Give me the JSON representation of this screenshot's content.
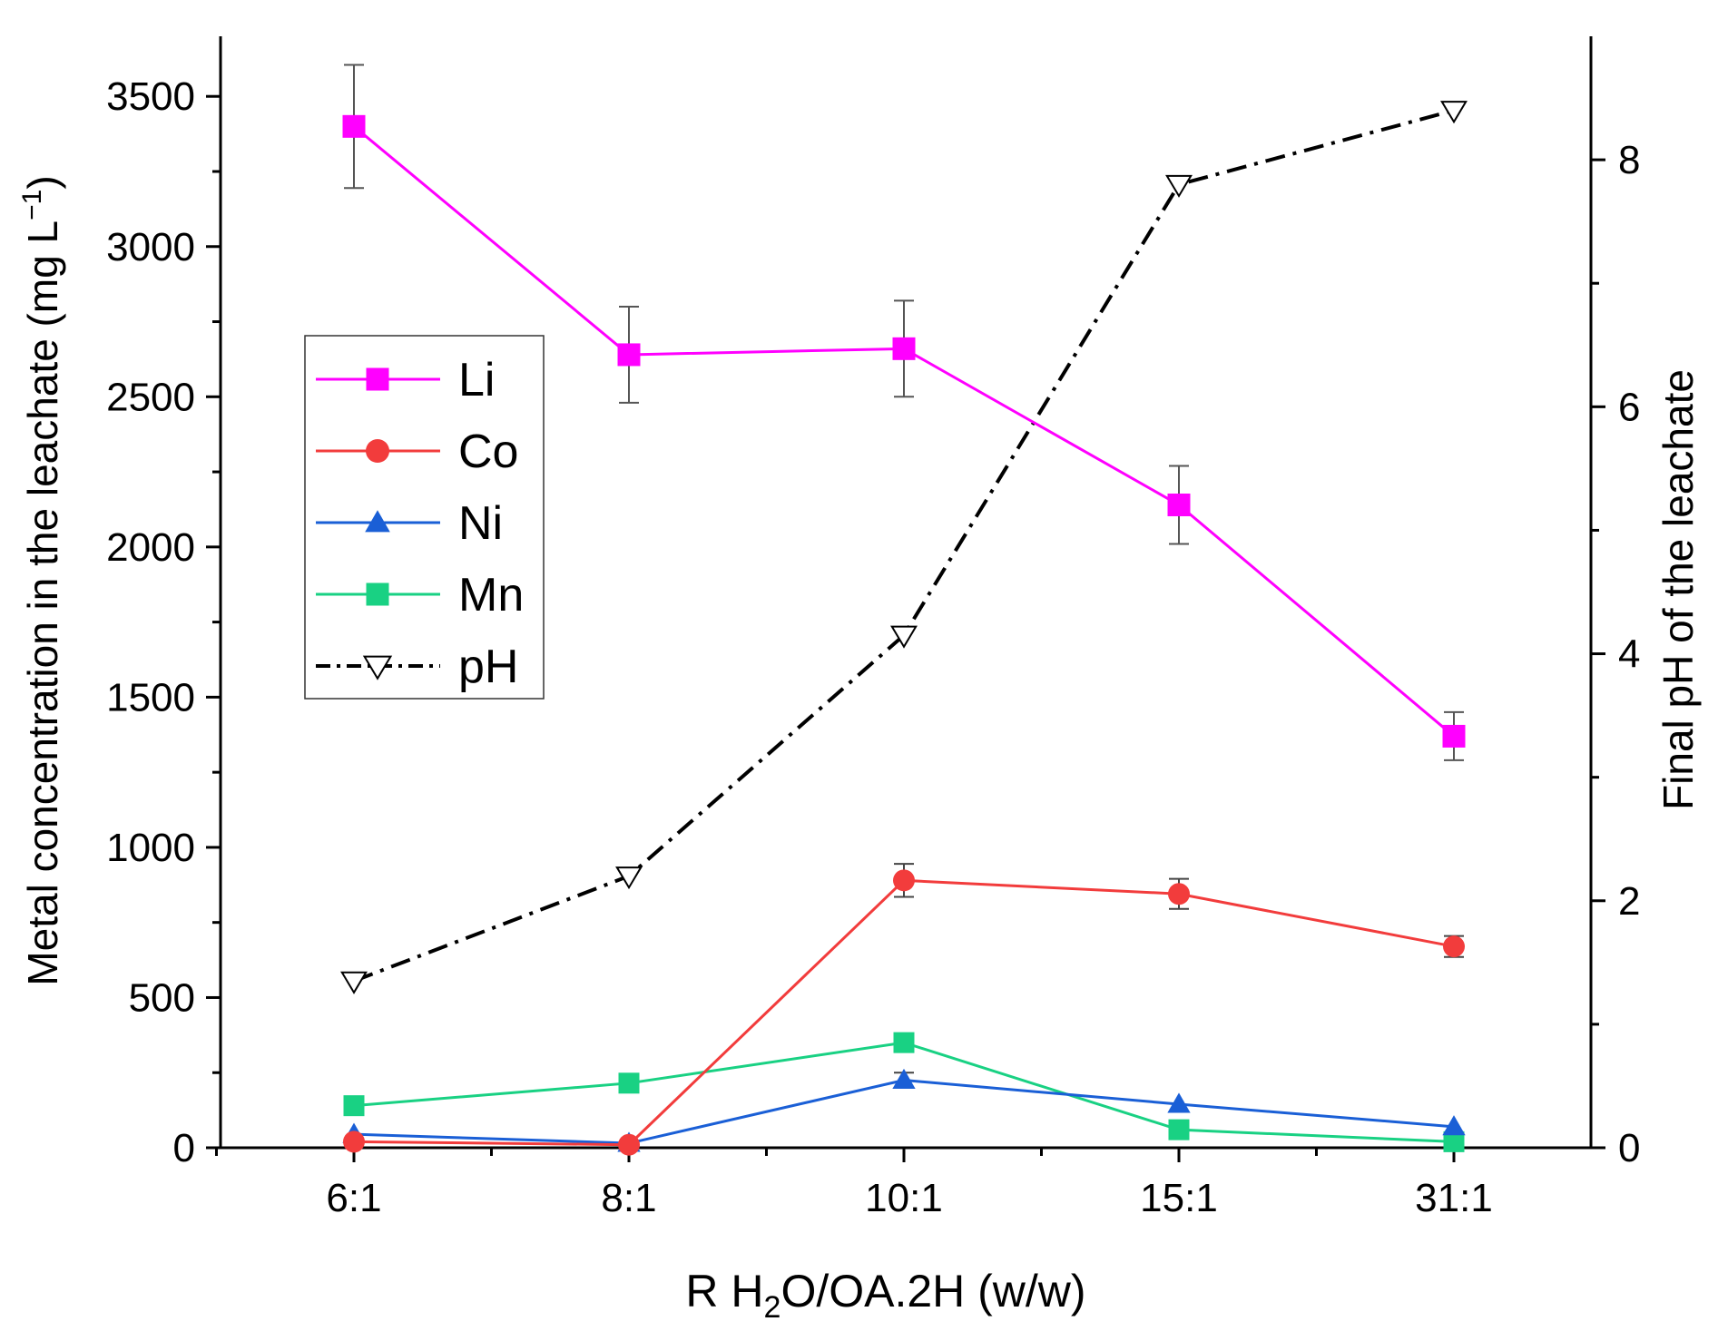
{
  "chart_data": {
    "type": "line",
    "x_title": {
      "main": "R H",
      "sub": "2",
      "rest": "O/OA.2H (w/w)"
    },
    "y_left_title": {
      "main": "Metal concentration in the leachate (mg L",
      "sup": "−1",
      "close": ")"
    },
    "y_right_title": "Final pH of the leachate",
    "categories": [
      "6:1",
      "8:1",
      "10:1",
      "15:1",
      "31:1"
    ],
    "y_left": {
      "lim": [
        0,
        3700
      ],
      "ticks": [
        0,
        500,
        1000,
        1500,
        2000,
        2500,
        3000,
        3500
      ],
      "labels": [
        "0",
        "500",
        "1000",
        "1500",
        "2000",
        "2500",
        "3000",
        "3500"
      ]
    },
    "y_right": {
      "lim": [
        0,
        9.0
      ],
      "ticks": [
        0,
        2,
        4,
        6,
        8
      ],
      "labels": [
        "0",
        "2",
        "4",
        "6",
        "8"
      ]
    },
    "legend_position": "upper-left",
    "series": [
      {
        "name": "Li",
        "axis": "left",
        "color": "#ff00ff",
        "marker": "square",
        "dash": "",
        "values": [
          3400,
          2640,
          2660,
          2140,
          1370
        ],
        "errors": [
          205,
          160,
          160,
          130,
          80
        ]
      },
      {
        "name": "Co",
        "axis": "left",
        "color": "#f23c3c",
        "marker": "circle",
        "dash": "",
        "values": [
          20,
          10,
          890,
          845,
          670
        ],
        "errors": [
          0,
          0,
          55,
          50,
          35
        ]
      },
      {
        "name": "Ni",
        "axis": "left",
        "color": "#1a5fd6",
        "marker": "triangle",
        "dash": "",
        "values": [
          45,
          15,
          225,
          145,
          70
        ],
        "errors": [
          0,
          0,
          25,
          0,
          0
        ]
      },
      {
        "name": "Mn",
        "axis": "left",
        "color": "#19d183",
        "marker": "square",
        "dash": "",
        "values": [
          140,
          215,
          350,
          60,
          20
        ],
        "errors": [
          0,
          0,
          25,
          0,
          0
        ]
      },
      {
        "name": "pH",
        "axis": "right",
        "color": "#000000",
        "marker": "triangle-down-open",
        "dash": "22 9 4 9",
        "values": [
          1.35,
          2.2,
          4.15,
          7.8,
          8.4
        ],
        "errors": [
          0,
          0,
          0,
          0,
          0
        ]
      }
    ]
  }
}
